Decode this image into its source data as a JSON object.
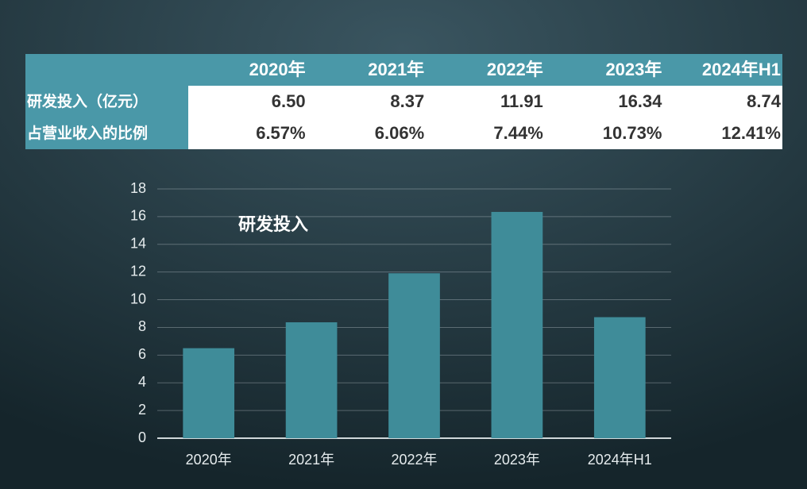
{
  "table": {
    "columns": [
      "2020年",
      "2021年",
      "2022年",
      "2023年",
      "2024年H1"
    ],
    "rows": [
      {
        "label": "研发投入（亿元）",
        "cells": [
          "6.50",
          "8.37",
          "11.91",
          "16.34",
          "8.74"
        ]
      },
      {
        "label": "占营业收入的比例",
        "cells": [
          "6.57%",
          "6.06%",
          "7.44%",
          "10.73%",
          "12.41%"
        ]
      }
    ]
  },
  "chart_data": {
    "type": "bar",
    "annotation": "研发投入",
    "categories": [
      "2020年",
      "2021年",
      "2022年",
      "2023年",
      "2024年H1"
    ],
    "values": [
      6.5,
      8.37,
      11.91,
      16.34,
      8.74
    ],
    "color": "#3f8c99",
    "ylim": [
      0,
      18
    ],
    "yticks": [
      0,
      2,
      4,
      6,
      8,
      10,
      12,
      14,
      16,
      18
    ],
    "grid": true
  }
}
